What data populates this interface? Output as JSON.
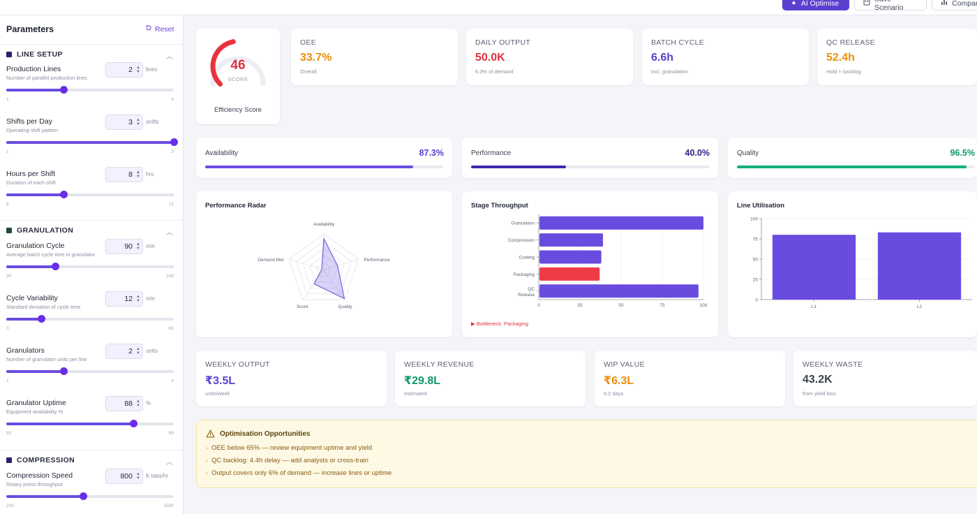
{
  "toolbar": {
    "ai_optimise": "AI Optimise",
    "save_scenario": "Save Scenario",
    "compare": "Compar"
  },
  "sidebar": {
    "title": "Parameters",
    "reset": "Reset",
    "sections": [
      {
        "title": "LINE SETUP",
        "color": "#2b1f6e"
      },
      {
        "title": "GRANULATION",
        "color": "#1f4a3e"
      },
      {
        "title": "COMPRESSION",
        "color": "#2b1f6e"
      }
    ],
    "params": [
      {
        "label": "Production Lines",
        "desc": "Number of parallel production lines",
        "value": "2",
        "unit": "lines",
        "min": "1",
        "max": "4",
        "fraction": 0.34
      },
      {
        "label": "Shifts per Day",
        "desc": "Operating shift pattern",
        "value": "3",
        "unit": "shifts",
        "min": "1",
        "max": "3",
        "fraction": 1.0
      },
      {
        "label": "Hours per Shift",
        "desc": "Duration of each shift",
        "value": "8",
        "unit": "hrs",
        "min": "6",
        "max": "12",
        "fraction": 0.34
      },
      {
        "label": "Granulation Cycle",
        "desc": "Average batch cycle time in granulator",
        "value": "90",
        "unit": "min",
        "min": "30",
        "max": "240",
        "fraction": 0.29
      },
      {
        "label": "Cycle Variability",
        "desc": "Standard deviation of cycle time",
        "value": "12",
        "unit": "min",
        "min": "0",
        "max": "60",
        "fraction": 0.21
      },
      {
        "label": "Granulators",
        "desc": "Number of granulator units per line",
        "value": "2",
        "unit": "units",
        "min": "1",
        "max": "4",
        "fraction": 0.34
      },
      {
        "label": "Granulator Uptime",
        "desc": "Equipment availability %",
        "value": "88",
        "unit": "%",
        "min": "50",
        "max": "99",
        "fraction": 0.76
      },
      {
        "label": "Compression Speed",
        "desc": "Rotary press throughput",
        "value": "800",
        "unit": "K tabs/hr",
        "min": "200",
        "max": "1500",
        "fraction": 0.46
      }
    ]
  },
  "score": {
    "value": "46",
    "label": "SCORE",
    "caption": "Efficiency Score",
    "fraction": 0.46
  },
  "kpis": [
    {
      "label": "OEE",
      "value": "33.7%",
      "sub": "Overall",
      "color": "#e8900c"
    },
    {
      "label": "DAILY OUTPUT",
      "value": "50.0K",
      "sub": "6.3% of demand",
      "color": "#e0313f"
    },
    {
      "label": "BATCH CYCLE",
      "value": "6.6h",
      "sub": "Incl. granulation",
      "color": "#5b3fd1"
    },
    {
      "label": "QC RELEASE",
      "value": "52.4h",
      "sub": "Hold + backlog",
      "color": "#e8900c"
    }
  ],
  "bars": [
    {
      "label": "Availability",
      "value": "87.3%",
      "fraction": 0.873,
      "color": "#6a4be0",
      "val_color": "#5b3fd1"
    },
    {
      "label": "Performance",
      "value": "40.0%",
      "fraction": 0.4,
      "color": "#3b2ab0",
      "val_color": "#2d2080"
    },
    {
      "label": "Quality",
      "value": "96.5%",
      "fraction": 0.965,
      "color": "#12b078",
      "val_color": "#0e9a66"
    }
  ],
  "radar": {
    "title": "Performance Radar",
    "axes": [
      "Availability",
      "Performance",
      "Quality",
      "Score",
      "Demand Met"
    ]
  },
  "throughput": {
    "title": "Stage Throughput",
    "stages": [
      "Granulation",
      "Compression",
      "Coating",
      "Packaging",
      "QC Release"
    ],
    "ticks": [
      "0",
      "25",
      "50",
      "75",
      "100"
    ],
    "bottleneck": "Bottleneck: Packaging"
  },
  "utilisation": {
    "title": "Line Utilisation",
    "ticks": [
      "100",
      "75",
      "50",
      "25",
      "0"
    ],
    "lines": [
      "L1",
      "L2"
    ]
  },
  "chart_data": [
    {
      "type": "radar",
      "title": "Performance Radar",
      "axes": [
        "Availability",
        "Performance",
        "Quality",
        "Score",
        "Demand Met"
      ],
      "values": [
        87.3,
        40.0,
        96.5,
        46,
        6.3
      ],
      "range": [
        0,
        100
      ]
    },
    {
      "type": "bar",
      "orientation": "horizontal",
      "title": "Stage Throughput",
      "categories": [
        "Granulation",
        "Compression",
        "Coating",
        "Packaging",
        "QC Release"
      ],
      "values": [
        100,
        39,
        38,
        37,
        97
      ],
      "colors": [
        "#6a4be0",
        "#6a4be0",
        "#6a4be0",
        "#ef3b46",
        "#6a4be0"
      ],
      "xlim": [
        0,
        100
      ]
    },
    {
      "type": "bar",
      "title": "Line Utilisation",
      "categories": [
        "L1",
        "L2"
      ],
      "values": [
        80,
        83
      ],
      "ylim": [
        0,
        100
      ]
    }
  ],
  "weekly": [
    {
      "label": "WEEKLY OUTPUT",
      "value": "₹3.5L",
      "sub": "units/week",
      "color": "#5b3fd1"
    },
    {
      "label": "WEEKLY REVENUE",
      "value": "₹29.8L",
      "sub": "estimated",
      "color": "#0e9a66"
    },
    {
      "label": "WIP VALUE",
      "value": "₹6.3L",
      "sub": "0.2 days",
      "color": "#e8900c"
    },
    {
      "label": "WEEKLY WASTE",
      "value": "43.2K",
      "sub": "from yield loss",
      "color": "#3b4050"
    }
  ],
  "opportunities": {
    "title": "Optimisation Opportunities",
    "items": [
      "OEE below 65% — review equipment uptime and yield",
      "QC backlog: 4.4h delay — add analysts or cross-train",
      "Output covers only 6% of demand — increase lines or uptime"
    ]
  }
}
